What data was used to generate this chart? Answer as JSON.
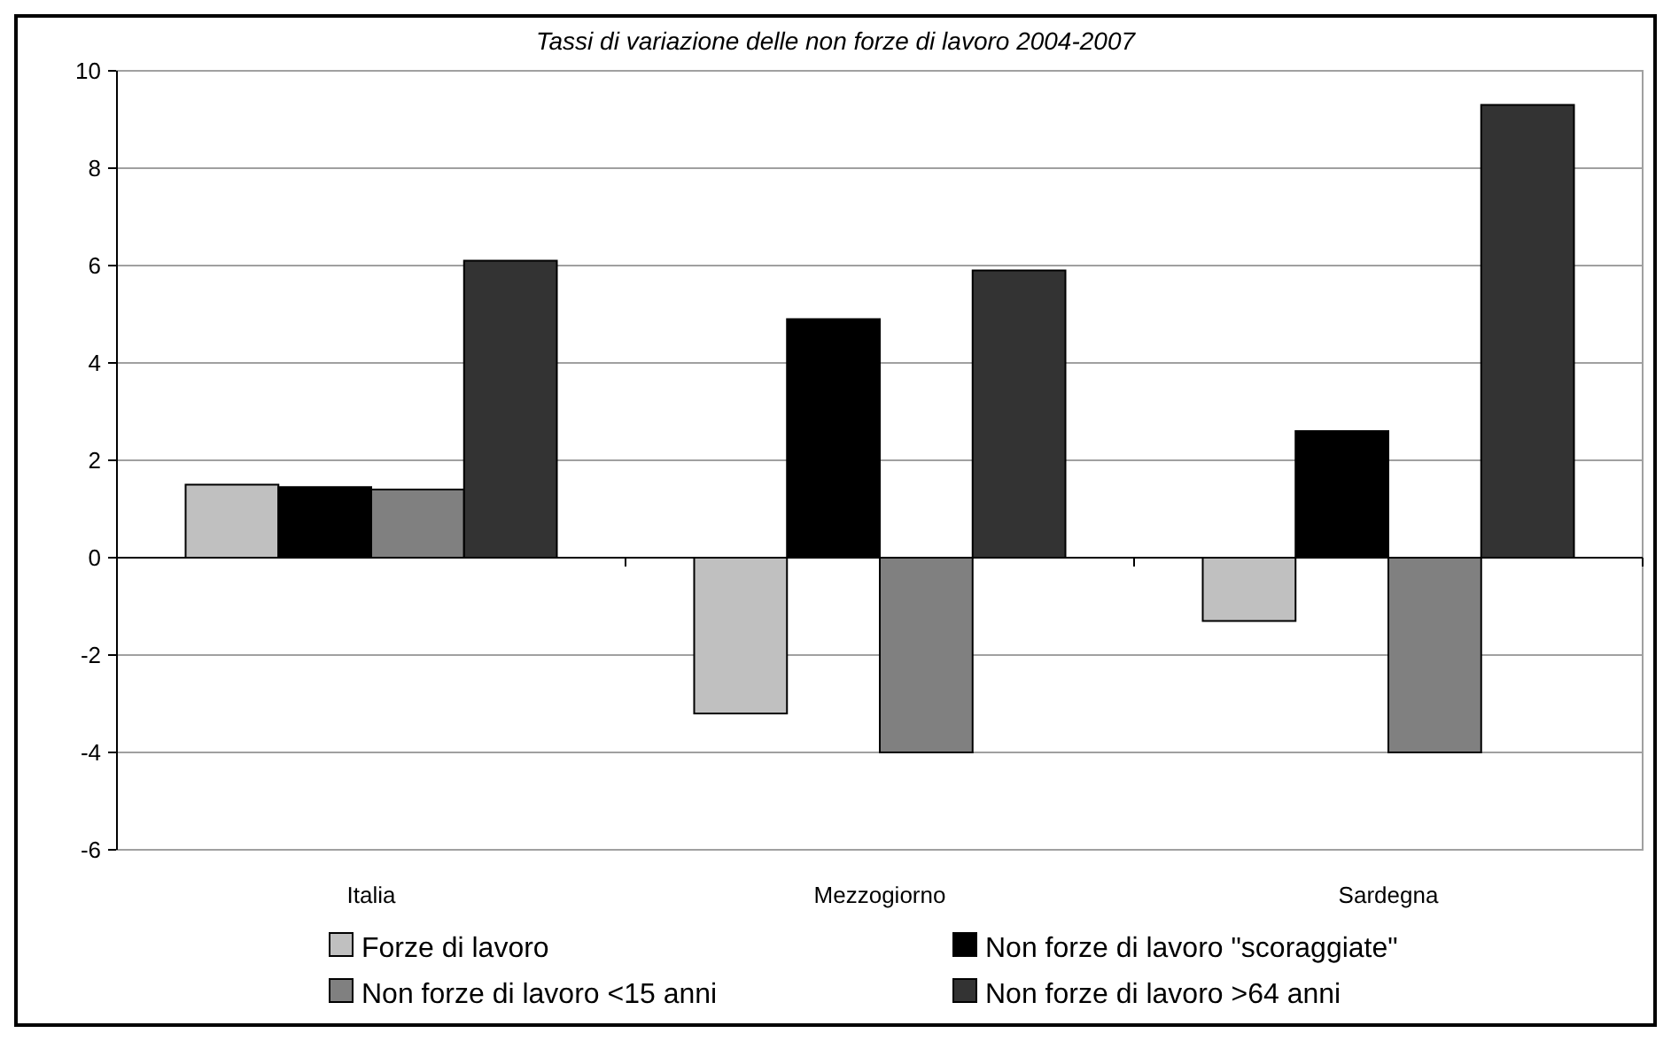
{
  "chart_data": {
    "type": "bar",
    "title": "Tassi di variazione delle non forze di lavoro 2004-2007",
    "categories": [
      "Italia",
      "Mezzogiorno",
      "Sardegna"
    ],
    "series": [
      {
        "name": "Forze di lavoro",
        "color": "#c0c0c0",
        "values": [
          1.5,
          -3.2,
          -1.3
        ]
      },
      {
        "name": "Non forze di lavoro \"scoraggiate\"",
        "color": "#000000",
        "values": [
          1.45,
          4.9,
          2.6
        ]
      },
      {
        "name": "Non forze di lavoro <15 anni",
        "color": "#808080",
        "values": [
          1.4,
          -4.0,
          -4.0
        ]
      },
      {
        "name": "Non forze di lavoro >64 anni",
        "color": "#333333",
        "values": [
          6.1,
          5.9,
          9.3
        ]
      }
    ],
    "ylim": [
      -6,
      10
    ],
    "yticks": [
      -6,
      -4,
      -2,
      0,
      2,
      4,
      6,
      8,
      10
    ],
    "grid": "y",
    "legend": "bottom"
  }
}
